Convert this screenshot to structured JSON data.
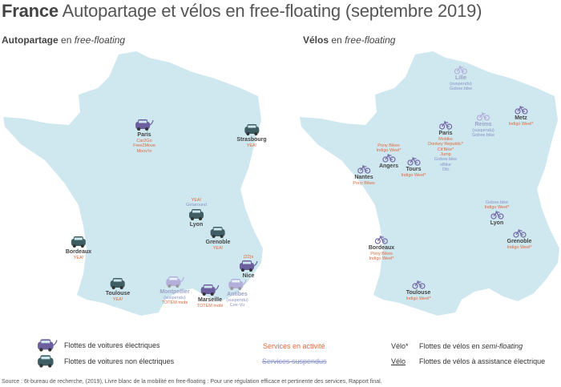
{
  "title": {
    "bold": "France",
    "rest": "Autopartage et vélos en free-floating (septembre 2019)"
  },
  "colors": {
    "map_fill": "#cfe7ef",
    "electric_car": "#6c5f9e",
    "nonelectric_car": "#3f5e64",
    "active_service": "#e06a3b",
    "suspended_service": "#8a94c8",
    "bike_icon": "#7268a6"
  },
  "left_map": {
    "heading_bold": "Autopartage",
    "heading_en": "en",
    "heading_italic": "free-floating",
    "markers": [
      {
        "city": "Paris",
        "icon": "electric-car",
        "services": [
          "Car2Go",
          "Free2Move",
          "Moov'in"
        ]
      },
      {
        "city": "Strasbourg",
        "icon": "nonelectric-car",
        "services": [
          "YEA!"
        ]
      },
      {
        "city": "Lyon",
        "icon": "nonelectric-car",
        "services_above": [
          "YEA!"
        ],
        "suspended_above": [
          "Getaround"
        ],
        "services": []
      },
      {
        "city": "Grenoble",
        "icon": "nonelectric-car",
        "services": [
          "YEA!"
        ]
      },
      {
        "city": "Bordeaux",
        "icon": "nonelectric-car",
        "services": [
          "YEA!"
        ]
      },
      {
        "city": "Toulouse",
        "icon": "nonelectric-car",
        "services": [
          "YEA!"
        ]
      },
      {
        "city": "Montpellier",
        "icon": "electric-car-suspended",
        "suspended": [
          "(suspendu)"
        ],
        "services": [
          "TOTEM mobi"
        ]
      },
      {
        "city": "Marseille",
        "icon": "electric-car",
        "services": [
          "TOTEM mobi"
        ]
      },
      {
        "city": "Antibes",
        "icon": "electric-car-suspended",
        "suspended": [
          "(suspendu)",
          "Cee-Vu"
        ],
        "services": []
      },
      {
        "city": "Nice",
        "icon": "electric-car",
        "services_above": [
          "(22)s"
        ],
        "services": []
      }
    ]
  },
  "right_map": {
    "heading_bold": "Vélos",
    "heading_en": "en",
    "heading_italic": "free-floating",
    "markers": [
      {
        "city": "Lille",
        "suspended_city": true,
        "suspended": [
          "(suspendu)",
          "Gobee.bike"
        ],
        "services": []
      },
      {
        "city": "Metz",
        "services": [
          "Indigo Weel*"
        ]
      },
      {
        "city": "Reims",
        "suspended_city": true,
        "suspended": [
          "(suspendu)",
          "Gobee.bike"
        ],
        "services": []
      },
      {
        "city": "Paris",
        "services": [
          "Mobike",
          "Donkey Republic*",
          "Cit'Bike*",
          "Jump"
        ],
        "suspended": [
          "Gobee.bike",
          "oBike",
          "Ofo"
        ]
      },
      {
        "city": "Angers",
        "services_above": [
          "Pony Bikes",
          "Indigo Weel*"
        ],
        "services": []
      },
      {
        "city": "Tours",
        "services": [
          "Indigo Weel*"
        ]
      },
      {
        "city": "Nantes",
        "services": [
          "Pony Bikes"
        ]
      },
      {
        "city": "Lyon",
        "suspended_above": [
          "Gobee.bike"
        ],
        "services_above": [
          "Indigo Weel*"
        ],
        "services": []
      },
      {
        "city": "Grenoble",
        "services": [
          "Indigo Weel*"
        ]
      },
      {
        "city": "Bordeaux",
        "services": [
          "Pony Bikes",
          "Indigo Weel*"
        ]
      },
      {
        "city": "Toulouse",
        "services": [
          "Indigo Weel*"
        ]
      }
    ]
  },
  "legend": {
    "electric": "Flottes de voitures électriques",
    "nonelectric": "Flottes de voitures non électriques",
    "active": "Services en activité",
    "suspended": "Services suspendus",
    "velo_star_label": "Vélo*",
    "velo_star_desc_pre": "Flottes de vélos en",
    "velo_star_desc_italic": "semi-floating",
    "velo_underline_label": "Vélo",
    "velo_underline_desc": "Flottes de vélos à assistance électrique"
  },
  "source": "Source : 6t-bureau de recherche, (2019), Livre blanc de la mobilité en free-floating : Pour une régulation efficace et pertinente des services, Rapport final."
}
